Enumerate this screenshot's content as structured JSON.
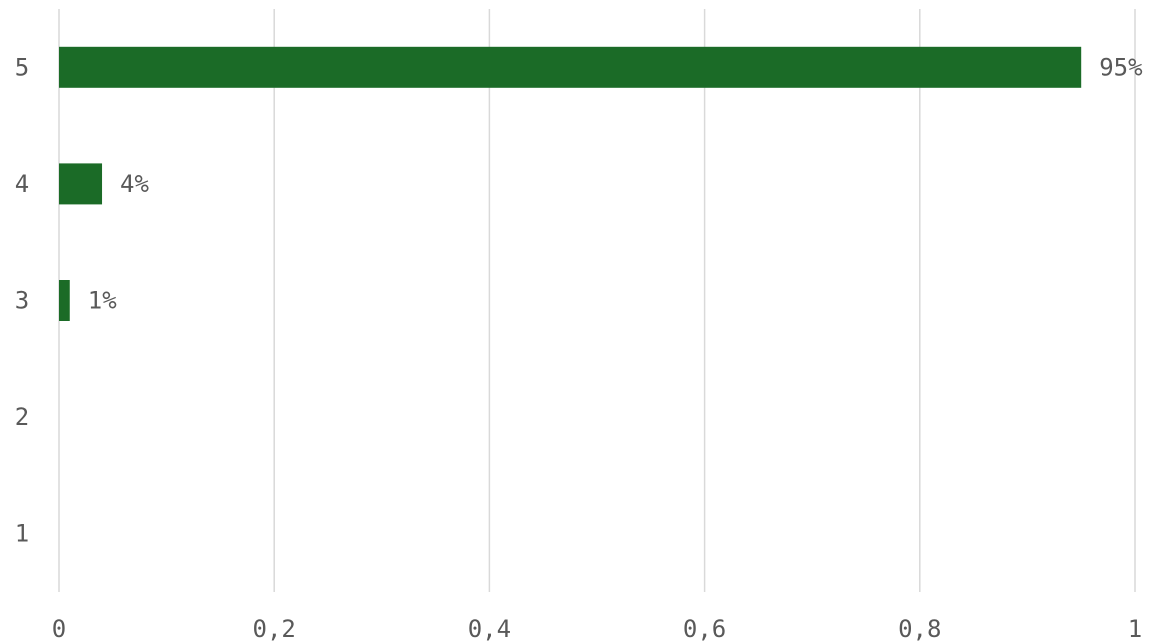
{
  "chart_data": {
    "type": "bar",
    "orientation": "horizontal",
    "categories": [
      "1",
      "2",
      "3",
      "4",
      "5"
    ],
    "values": [
      0,
      0,
      0.01,
      0.04,
      0.95
    ],
    "data_labels": [
      "",
      "",
      "1%",
      "4%",
      "95%"
    ],
    "xlim": [
      0,
      1
    ],
    "x_ticks": [
      0,
      0.2,
      0.4,
      0.6,
      0.8,
      1
    ],
    "x_tick_labels": [
      "0",
      "0,2",
      "0,4",
      "0,6",
      "0,8",
      "1"
    ],
    "grid": true,
    "bar_color": "#1b6b27",
    "gridline_color": "#d9d9d9",
    "text_color": "#595959",
    "title": "",
    "xlabel": "",
    "ylabel": ""
  }
}
